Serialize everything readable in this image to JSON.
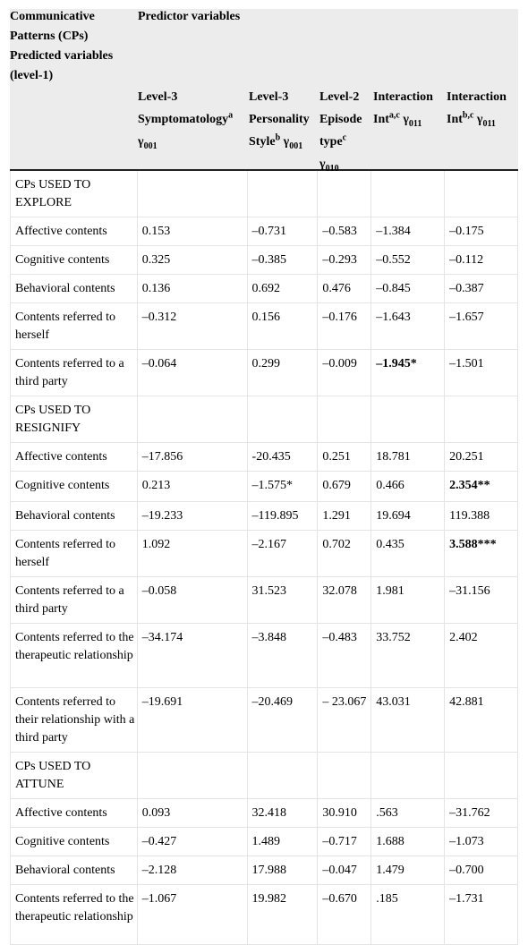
{
  "header": {
    "col0_line1": "Communicative",
    "col0_line2": "Patterns (CPs)",
    "col0_line3": "Predicted variables",
    "col0_line4": "(level-1)",
    "predictor_title": "Predictor variables",
    "col1": {
      "a": "Level-3",
      "b": "Symptomatology",
      "b_sup": "a",
      "c": "γ",
      "c_sub": "001"
    },
    "col2": {
      "a": "Level-3",
      "b": "Personality",
      "c": "Style",
      "c_sup": "b",
      "c2": " γ",
      "c_sub": "001"
    },
    "col3": {
      "a": "Level-2",
      "b": "Episode",
      "c": "type",
      "c_sup": "c",
      "d": "γ",
      "d_sub": "010"
    },
    "col4": {
      "a": "Interaction",
      "b": "Int",
      "b_sup": "a,c",
      "b2": " γ",
      "b_sub": "011"
    },
    "col5": {
      "a": "Interaction",
      "b": "Int",
      "b_sup": "b,c",
      "b2": " γ",
      "b_sub": "011"
    }
  },
  "rows": [
    {
      "label": "CPs USED TO EXPLORE",
      "section": true,
      "h": 51
    },
    {
      "label": "Affective contents",
      "v": [
        "0.153",
        "–0.731",
        "–0.583",
        "–1.384",
        "–0.175"
      ],
      "h": 31
    },
    {
      "label": "Cognitive contents",
      "v": [
        "0.325",
        "–0.385",
        "–0.293",
        "–0.552",
        "–0.112"
      ],
      "h": 31
    },
    {
      "label": "Behavioral contents",
      "v": [
        "0.136",
        "0.692",
        "0.476",
        "–0.845",
        "–0.387"
      ],
      "h": 31
    },
    {
      "label": "Contents referred to herself",
      "v": [
        "–0.312",
        "0.156",
        "–0.176",
        "–1.643",
        "–1.657"
      ],
      "h": 51
    },
    {
      "label": "Contents referred to a third party",
      "v": [
        "–0.064",
        "0.299",
        "–0.009",
        "–1.945*",
        "–1.501"
      ],
      "bold": [
        3
      ],
      "h": 51
    },
    {
      "label": "CPs USED TO RESIGNIFY",
      "section": true,
      "h": 51
    },
    {
      "label": "Affective contents",
      "v": [
        "–17.856",
        "-20.435",
        "0.251",
        "18.781",
        "20.251"
      ],
      "h": 31
    },
    {
      "label": "Cognitive contents",
      "v": [
        "0.213",
        "–1.575*",
        "0.679",
        "0.466",
        "2.354**"
      ],
      "bold": [
        4
      ],
      "h": 33
    },
    {
      "label": "Behavioral contents",
      "v": [
        "–19.233",
        "–119.895",
        "1.291",
        "19.694",
        "119.388"
      ],
      "h": 31
    },
    {
      "label": "Contents referred to herself",
      "v": [
        "1.092",
        "–2.167",
        "0.702",
        "0.435",
        "3.588***"
      ],
      "bold": [
        4
      ],
      "h": 51
    },
    {
      "label": "Contents referred to a third party",
      "v": [
        "–0.058",
        "31.523",
        "32.078",
        "1.981",
        "–31.156"
      ],
      "h": 51
    },
    {
      "label": "Contents referred to the therapeutic relationship",
      "v": [
        "–34.174",
        "–3.848",
        "–0.483",
        "33.752",
        "2.402"
      ],
      "h": 71
    },
    {
      "label": "Contents referred to their relationship with a third party",
      "v": [
        "–19.691",
        "–20.469",
        "– 23.067",
        "43.031",
        "42.881"
      ],
      "h": 71
    },
    {
      "label": "CPs USED TO ATTUNE",
      "section": true,
      "h": 51
    },
    {
      "label": "Affective contents",
      "v": [
        "0.093",
        "32.418",
        "30.910",
        ".563",
        "–31.762"
      ],
      "h": 31
    },
    {
      "label": "Cognitive contents",
      "v": [
        "–0.427",
        "1.489",
        "–0.717",
        "1.688",
        "–1.073"
      ],
      "h": 31
    },
    {
      "label": "Behavioral contents",
      "v": [
        "–2.128",
        "17.988",
        "–0.047",
        "1.479",
        "–0.700"
      ],
      "h": 31
    },
    {
      "label": "Contents referred to the therapeutic relationship",
      "v": [
        "–1.067",
        "19.982",
        "–0.670",
        ".185",
        "–1.731"
      ],
      "h": 66
    }
  ]
}
